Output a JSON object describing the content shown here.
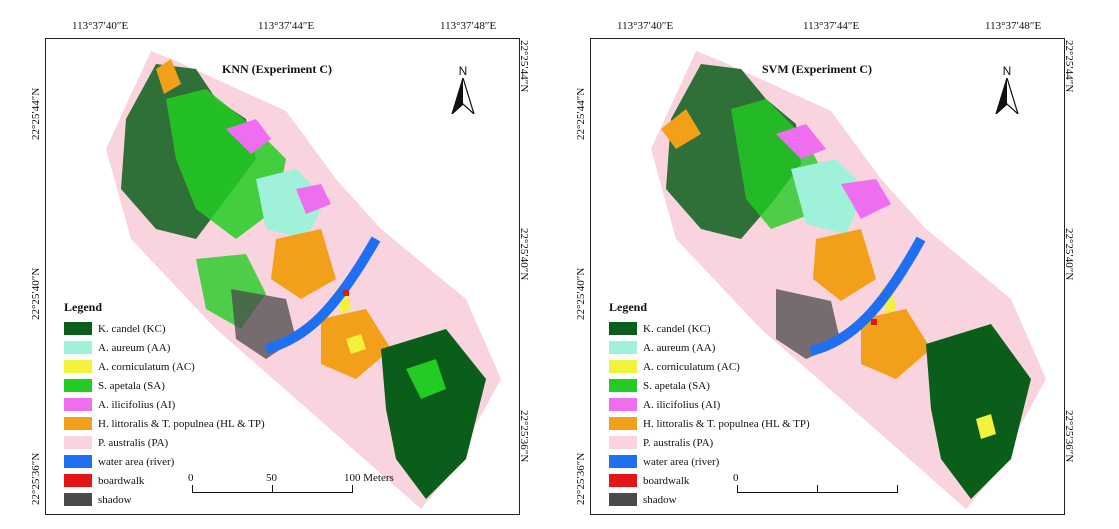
{
  "panels": [
    {
      "id": "knn",
      "title": "KNN (Experiment C)",
      "scale": {
        "labels": [
          "0",
          "50",
          "100 Meters"
        ]
      }
    },
    {
      "id": "svm",
      "title": "SVM (Experiment C)",
      "scale": {
        "labels": [
          "0",
          "",
          ""
        ]
      }
    }
  ],
  "coords": {
    "lon": [
      "113°37′40″E",
      "113°37′44″E",
      "113°37′48″E"
    ],
    "lat": [
      "22°25′44″N",
      "22°25′40″N",
      "22°25′36″N"
    ]
  },
  "north_label": "N",
  "legend": {
    "title": "Legend",
    "items": [
      {
        "label": "K. candel (KC)",
        "color": "#0b5e1a"
      },
      {
        "label": "A. aureum (AA)",
        "color": "#9ff1da"
      },
      {
        "label": "A. corniculatum (AC)",
        "color": "#f2f23c"
      },
      {
        "label": "S. apetala (SA)",
        "color": "#22cc22"
      },
      {
        "label": "A. ilicifolius (AI)",
        "color": "#ef6ef0"
      },
      {
        "label": "H. littoralis & T. populnea (HL & TP)",
        "color": "#f2a019"
      },
      {
        "label": "P. australis (PA)",
        "color": "#f9d3de"
      },
      {
        "label": "water area (river)",
        "color": "#1f6ff2"
      },
      {
        "label": "boardwalk",
        "color": "#e51515"
      },
      {
        "label": "shadow",
        "color": "#4a4a4a"
      }
    ]
  }
}
